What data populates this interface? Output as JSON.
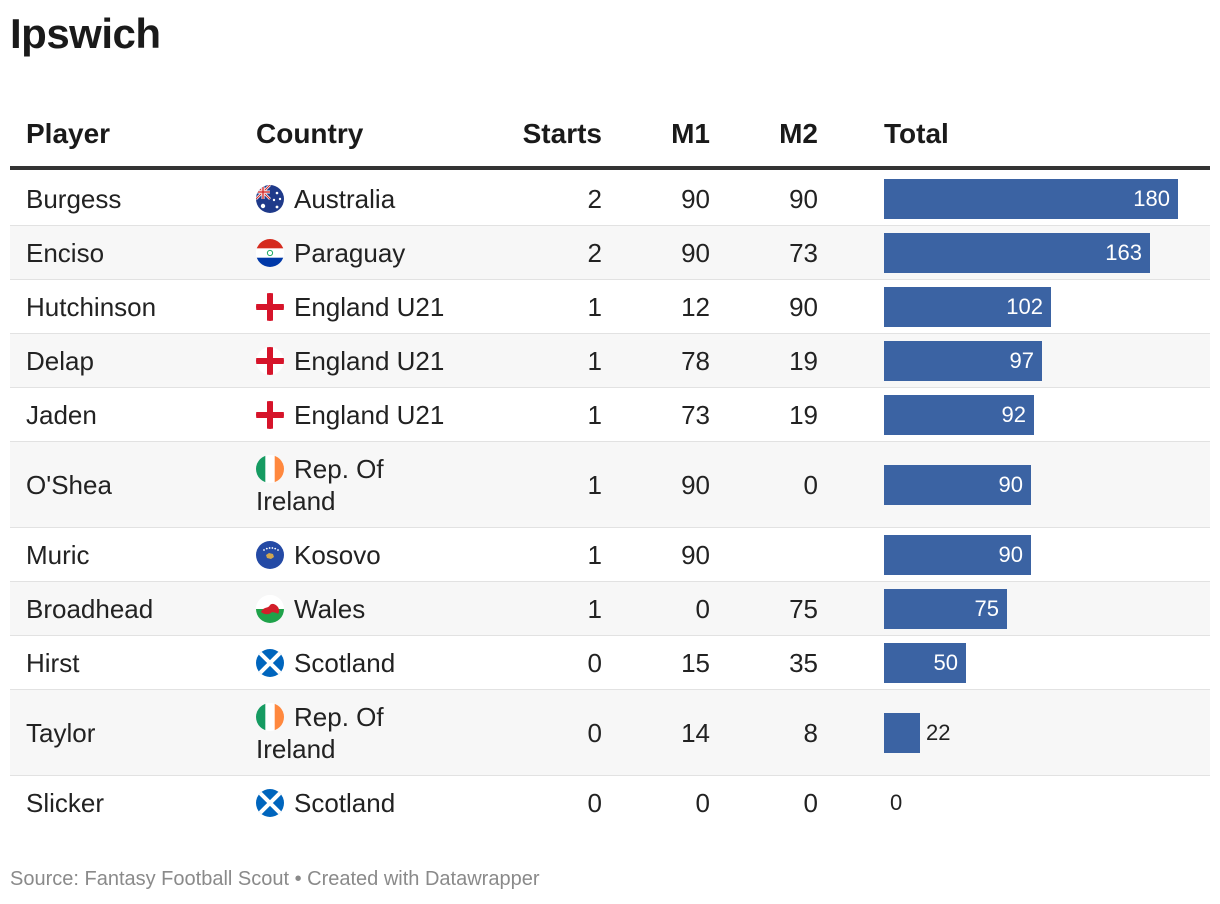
{
  "title": "Ipswich",
  "columns": {
    "player": "Player",
    "country": "Country",
    "starts": "Starts",
    "m1": "M1",
    "m2": "M2",
    "total": "Total"
  },
  "colors": {
    "bar": "#3b63a3",
    "header_rule": "#333333",
    "alt_row": "#f7f7f7"
  },
  "chart_data": {
    "type": "table",
    "max_total": 180,
    "rows": [
      {
        "player": "Burgess",
        "country": "Australia",
        "country_lines": [
          "Australia"
        ],
        "flag": "australia-flag-icon",
        "starts": 2,
        "m1": 90,
        "m2": 90,
        "total": 180
      },
      {
        "player": "Enciso",
        "country": "Paraguay",
        "country_lines": [
          "Paraguay"
        ],
        "flag": "paraguay-flag-icon",
        "starts": 2,
        "m1": 90,
        "m2": 73,
        "total": 163
      },
      {
        "player": "Hutchinson",
        "country": "England U21",
        "country_lines": [
          "England U21"
        ],
        "flag": "england-flag-icon",
        "starts": 1,
        "m1": 12,
        "m2": 90,
        "total": 102
      },
      {
        "player": "Delap",
        "country": "England U21",
        "country_lines": [
          "England U21"
        ],
        "flag": "england-flag-icon",
        "starts": 1,
        "m1": 78,
        "m2": 19,
        "total": 97
      },
      {
        "player": "Jaden",
        "country": "England U21",
        "country_lines": [
          "England U21"
        ],
        "flag": "england-flag-icon",
        "starts": 1,
        "m1": 73,
        "m2": 19,
        "total": 92
      },
      {
        "player": "O'Shea",
        "country": "Rep. Of Ireland",
        "country_lines": [
          "Rep. Of",
          "Ireland"
        ],
        "flag": "ireland-flag-icon",
        "starts": 1,
        "m1": 90,
        "m2": 0,
        "total": 90
      },
      {
        "player": "Muric",
        "country": "Kosovo",
        "country_lines": [
          "Kosovo"
        ],
        "flag": "kosovo-flag-icon",
        "starts": 1,
        "m1": 90,
        "m2": null,
        "total": 90
      },
      {
        "player": "Broadhead",
        "country": "Wales",
        "country_lines": [
          "Wales"
        ],
        "flag": "wales-flag-icon",
        "starts": 1,
        "m1": 0,
        "m2": 75,
        "total": 75
      },
      {
        "player": "Hirst",
        "country": "Scotland",
        "country_lines": [
          "Scotland"
        ],
        "flag": "scotland-flag-icon",
        "starts": 0,
        "m1": 15,
        "m2": 35,
        "total": 50
      },
      {
        "player": "Taylor",
        "country": "Rep. Of Ireland",
        "country_lines": [
          "Rep. Of",
          "Ireland"
        ],
        "flag": "ireland-flag-icon",
        "starts": 0,
        "m1": 14,
        "m2": 8,
        "total": 22
      },
      {
        "player": "Slicker",
        "country": "Scotland",
        "country_lines": [
          "Scotland"
        ],
        "flag": "scotland-flag-icon",
        "starts": 0,
        "m1": 0,
        "m2": 0,
        "total": 0
      }
    ]
  },
  "footer": "Source: Fantasy Football Scout • Created with Datawrapper"
}
